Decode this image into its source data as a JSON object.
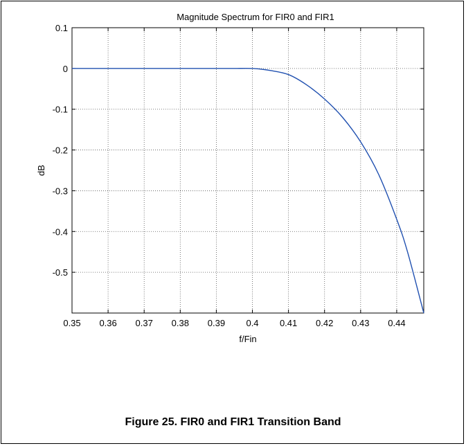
{
  "caption": "Figure 25. FIR0 and FIR1 Transition Band",
  "chart_data": {
    "type": "line",
    "title": "Magnitude Spectrum for FIR0 and FIR1",
    "xlabel": "f/Fin",
    "ylabel": "dB",
    "xlim": [
      0.35,
      0.4475
    ],
    "ylim": [
      -0.6,
      0.1
    ],
    "xticks": [
      0.35,
      0.36,
      0.37,
      0.38,
      0.39,
      0.4,
      0.41,
      0.42,
      0.43,
      0.44
    ],
    "xtick_labels": [
      "0.35",
      "0.36",
      "0.37",
      "0.38",
      "0.39",
      "0.4",
      "0.41",
      "0.42",
      "0.43",
      "0.44"
    ],
    "yticks": [
      0.1,
      0,
      -0.1,
      -0.2,
      -0.3,
      -0.4,
      -0.5
    ],
    "ytick_labels": [
      "0.1",
      "0",
      "-0.1",
      "-0.2",
      "-0.3",
      "-0.4",
      "-0.5"
    ],
    "grid": true,
    "series": [
      {
        "color": "#2050b0",
        "x": [
          0.35,
          0.36,
          0.37,
          0.38,
          0.39,
          0.395,
          0.4,
          0.405,
          0.41,
          0.415,
          0.42,
          0.425,
          0.43,
          0.435,
          0.44,
          0.443,
          0.4475
        ],
        "y": [
          0,
          0,
          0,
          0,
          0,
          0,
          0,
          -0.005,
          -0.015,
          -0.04,
          -0.075,
          -0.12,
          -0.18,
          -0.26,
          -0.37,
          -0.45,
          -0.6
        ]
      }
    ]
  }
}
